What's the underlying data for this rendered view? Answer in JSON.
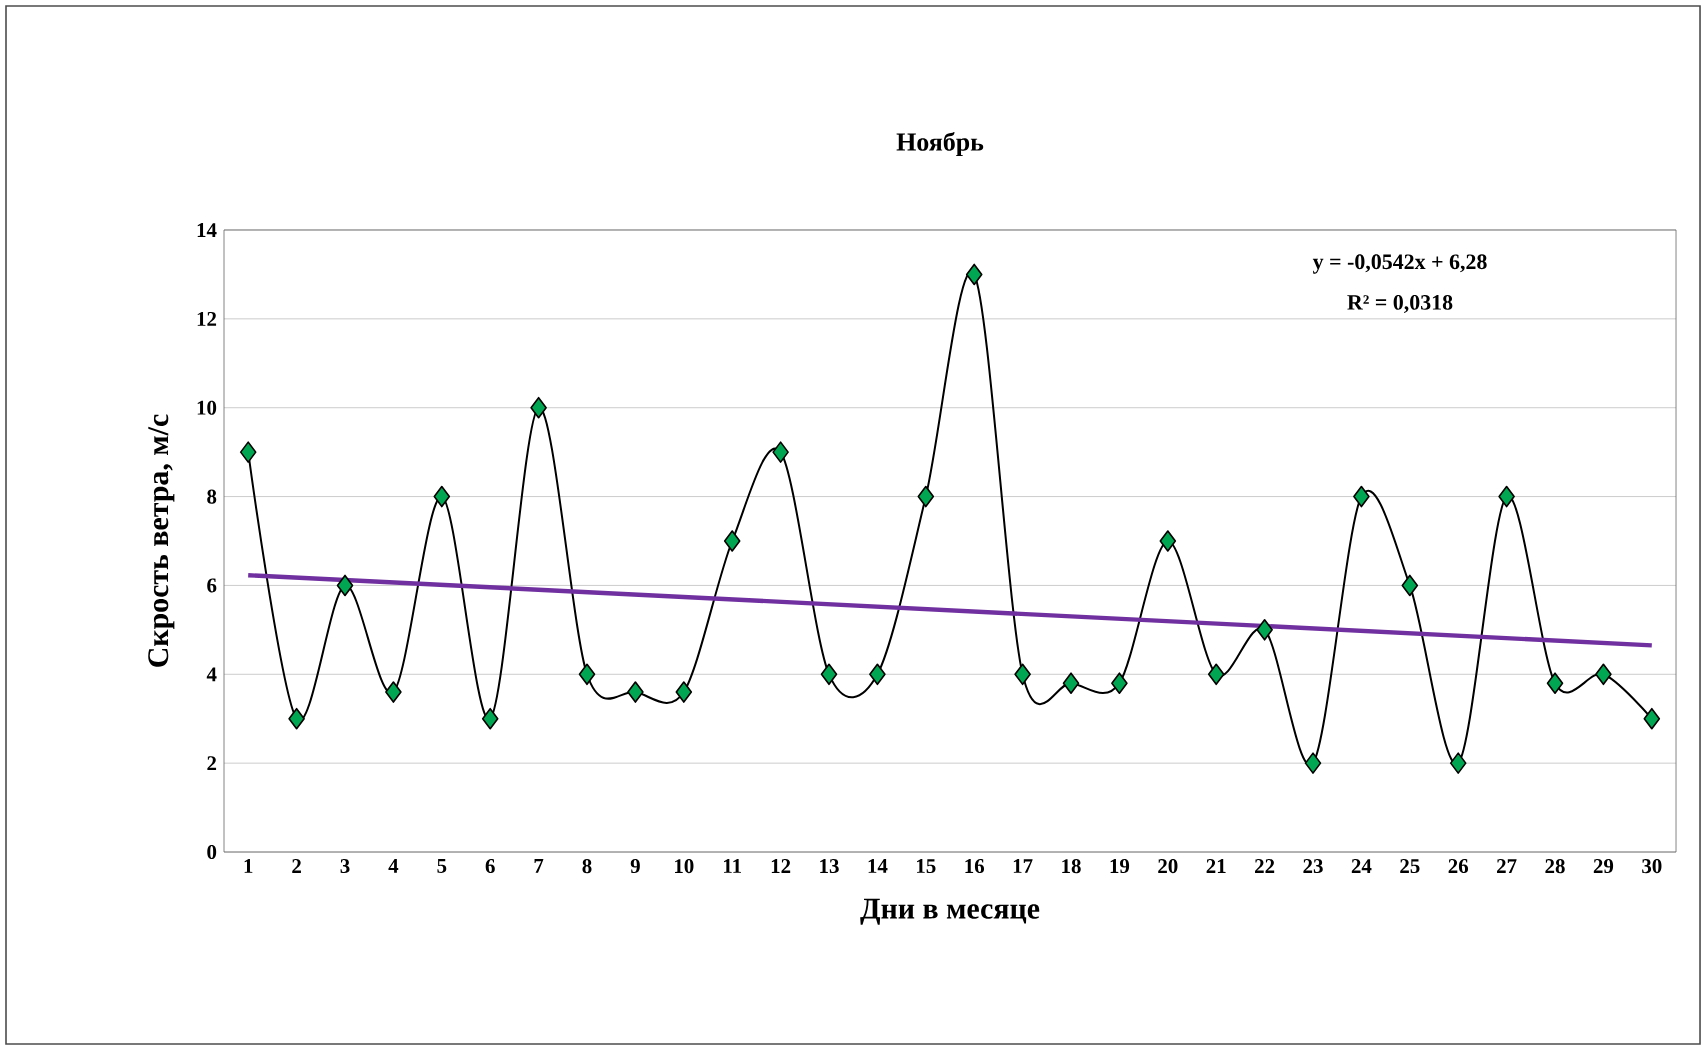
{
  "chart_data": {
    "type": "line",
    "title": "Ноябрь",
    "xlabel": "Дни в месяце",
    "ylabel": "Скрость ветра, м/с",
    "x": [
      1,
      2,
      3,
      4,
      5,
      6,
      7,
      8,
      9,
      10,
      11,
      12,
      13,
      14,
      15,
      16,
      17,
      18,
      19,
      20,
      21,
      22,
      23,
      24,
      25,
      26,
      27,
      28,
      29,
      30
    ],
    "series": [
      {
        "color": "#00a651",
        "marker": "diamond",
        "values": [
          9,
          3,
          6,
          3.6,
          8,
          3,
          10,
          4,
          3.6,
          3.6,
          7,
          9,
          4,
          4,
          8,
          13,
          4,
          3.8,
          3.8,
          7,
          4,
          5,
          2,
          8,
          6,
          2,
          8,
          3.8,
          4,
          3
        ]
      },
      {
        "color": "#7030a0",
        "marker": "none",
        "x": [
          1,
          30
        ],
        "values": [
          6.23,
          4.65
        ]
      }
    ],
    "xlim": [
      0.5,
      30.5
    ],
    "xticks": [
      1,
      2,
      3,
      4,
      5,
      6,
      7,
      8,
      9,
      10,
      11,
      12,
      13,
      14,
      15,
      16,
      17,
      18,
      19,
      20,
      21,
      22,
      23,
      24,
      25,
      26,
      27,
      28,
      29,
      30
    ],
    "ylim": [
      0,
      14
    ],
    "yticks": [
      0,
      2,
      4,
      6,
      8,
      10,
      12,
      14
    ],
    "grid": "y",
    "annotations": [
      "y = -0,0542x + 6,28",
      "R² = 0,0318"
    ]
  }
}
